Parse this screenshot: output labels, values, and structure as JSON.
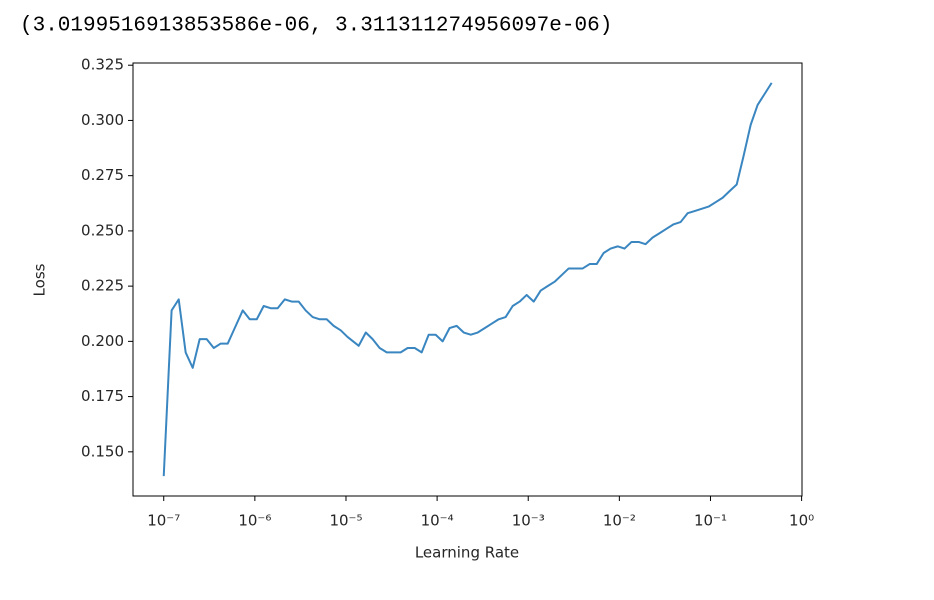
{
  "output_text": "(3.0199516913853586e-06, 3.311311274956097e-06)",
  "chart_data": {
    "type": "line",
    "xlabel": "Learning Rate",
    "ylabel": "Loss",
    "xscale": "log",
    "xlim": [
      4.6e-08,
      1.01
    ],
    "ylim": [
      0.13,
      0.326
    ],
    "xticks": [
      {
        "value": 1e-07,
        "label": "10⁻⁷"
      },
      {
        "value": 1e-06,
        "label": "10⁻⁶"
      },
      {
        "value": 1e-05,
        "label": "10⁻⁵"
      },
      {
        "value": 0.0001,
        "label": "10⁻⁴"
      },
      {
        "value": 0.001,
        "label": "10⁻³"
      },
      {
        "value": 0.01,
        "label": "10⁻²"
      },
      {
        "value": 0.1,
        "label": "10⁻¹"
      },
      {
        "value": 1,
        "label": "10⁰"
      }
    ],
    "yticks": [
      {
        "value": 0.15,
        "label": "0.150"
      },
      0.175,
      {
        "value": 0.2,
        "label": "0.200"
      },
      0.225,
      {
        "value": 0.25,
        "label": "0.250"
      },
      0.275,
      {
        "value": 0.3,
        "label": "0.300"
      },
      0.325
    ],
    "series": [
      {
        "color": "#3a86c0",
        "x": [
          1e-07,
          1.22e-07,
          1.46e-07,
          1.74e-07,
          2.08e-07,
          2.48e-07,
          2.96e-07,
          3.54e-07,
          4.22e-07,
          5.04e-07,
          6.01e-07,
          7.36e-07,
          8.78e-07,
          1.05e-06,
          1.25e-06,
          1.49e-06,
          1.78e-06,
          2.13e-06,
          2.54e-06,
          3.03e-06,
          3.61e-06,
          4.31e-06,
          5.15e-06,
          6.14e-06,
          7.33e-06,
          8.75e-06,
          1.04e-05,
          1.38e-05,
          1.65e-05,
          1.96e-05,
          2.34e-05,
          2.8e-05,
          3.34e-05,
          3.98e-05,
          4.75e-05,
          5.68e-05,
          6.77e-05,
          8.08e-05,
          9.64e-05,
          0.000115,
          0.000137,
          0.000164,
          0.000196,
          0.000234,
          0.000279,
          0.000333,
          0.000397,
          0.000474,
          0.000565,
          0.000675,
          0.000805,
          0.000961,
          0.00115,
          0.00137,
          0.00163,
          0.00195,
          0.00233,
          0.00278,
          0.00331,
          0.00396,
          0.00472,
          0.00564,
          0.00672,
          0.00802,
          0.00958,
          0.0114,
          0.0136,
          0.0163,
          0.0194,
          0.0232,
          0.0277,
          0.033,
          0.0394,
          0.047,
          0.0561,
          0.067,
          0.0799,
          0.0954,
          0.114,
          0.136,
          0.162,
          0.194,
          0.231,
          0.276,
          0.329,
          0.469
        ],
        "values": [
          0.139,
          0.214,
          0.219,
          0.195,
          0.188,
          0.201,
          0.201,
          0.197,
          0.199,
          0.199,
          0.206,
          0.214,
          0.21,
          0.21,
          0.216,
          0.215,
          0.215,
          0.219,
          0.218,
          0.218,
          0.214,
          0.211,
          0.21,
          0.21,
          0.207,
          0.205,
          0.202,
          0.198,
          0.204,
          0.201,
          0.197,
          0.195,
          0.195,
          0.195,
          0.197,
          0.197,
          0.195,
          0.203,
          0.203,
          0.2,
          0.206,
          0.207,
          0.204,
          0.203,
          0.204,
          0.206,
          0.208,
          0.21,
          0.211,
          0.216,
          0.218,
          0.221,
          0.218,
          0.223,
          0.225,
          0.227,
          0.23,
          0.233,
          0.233,
          0.233,
          0.235,
          0.235,
          0.24,
          0.242,
          0.243,
          0.242,
          0.245,
          0.245,
          0.244,
          0.247,
          0.249,
          0.251,
          0.253,
          0.254,
          0.258,
          0.259,
          0.26,
          0.261,
          0.263,
          0.265,
          0.268,
          0.271,
          0.284,
          0.298,
          0.307,
          0.317
        ]
      }
    ]
  }
}
